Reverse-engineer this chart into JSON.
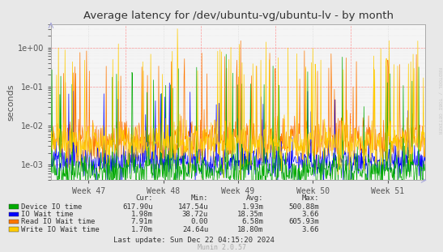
{
  "title": "Average latency for /dev/ubuntu-vg/ubuntu-lv - by month",
  "ylabel": "seconds",
  "background_color": "#e8e8e8",
  "plot_bg_color": "#f5f5f5",
  "grid_color": "#cccccc",
  "ylim_min": 0.0004,
  "ylim_max": 4.0,
  "week_labels": [
    "Week 47",
    "Week 48",
    "Week 49",
    "Week 50",
    "Week 51"
  ],
  "right_label": "RRDTOOL / TOBI OETIKER",
  "legend": [
    {
      "label": "Device IO time",
      "color": "#00aa00"
    },
    {
      "label": "IO Wait time",
      "color": "#0000ff"
    },
    {
      "label": "Read IO Wait time",
      "color": "#ff7700"
    },
    {
      "label": "Write IO Wait time",
      "color": "#ffcc00"
    }
  ],
  "table_headers": [
    "Cur:",
    "Min:",
    "Avg:",
    "Max:"
  ],
  "table_rows": [
    [
      "617.90u",
      "147.54u",
      "1.93m",
      "500.88m"
    ],
    [
      "1.98m",
      "38.72u",
      "18.35m",
      "3.66"
    ],
    [
      "7.91m",
      "0.00",
      "6.58m",
      "605.93m"
    ],
    [
      "1.70m",
      "24.64u",
      "18.80m",
      "3.66"
    ]
  ],
  "footer": "Last update: Sun Dec 22 04:15:20 2024",
  "munin_label": "Munin 2.0.57",
  "n_points": 800,
  "seed": 42
}
